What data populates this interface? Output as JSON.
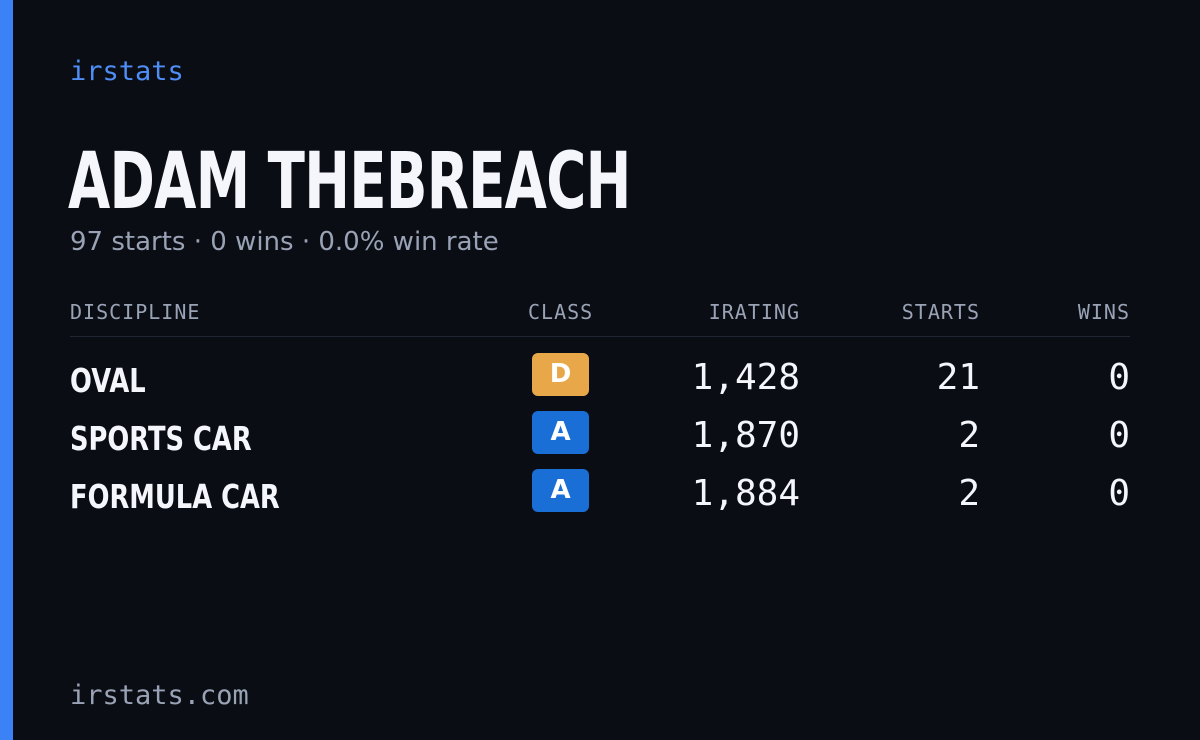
{
  "brand": "irstats",
  "driver": {
    "name": "ADAM THEBREACH",
    "summary": "97 starts · 0 wins · 0.0% win rate"
  },
  "table": {
    "headers": {
      "discipline": "DISCIPLINE",
      "class": "CLASS",
      "irating": "IRATING",
      "starts": "STARTS",
      "wins": "WINS"
    },
    "rows": [
      {
        "discipline": "OVAL",
        "class": "D",
        "class_color": "#e8a84a",
        "irating": "1,428",
        "starts": "21",
        "wins": "0"
      },
      {
        "discipline": "SPORTS CAR",
        "class": "A",
        "class_color": "#1a6fd6",
        "irating": "1,870",
        "starts": "2",
        "wins": "0"
      },
      {
        "discipline": "FORMULA CAR",
        "class": "A",
        "class_color": "#1a6fd6",
        "irating": "1,884",
        "starts": "2",
        "wins": "0"
      }
    ]
  },
  "footer": {
    "url": "irstats.com"
  },
  "colors": {
    "accent": "#3b82f6",
    "background": "#0a0d14"
  }
}
